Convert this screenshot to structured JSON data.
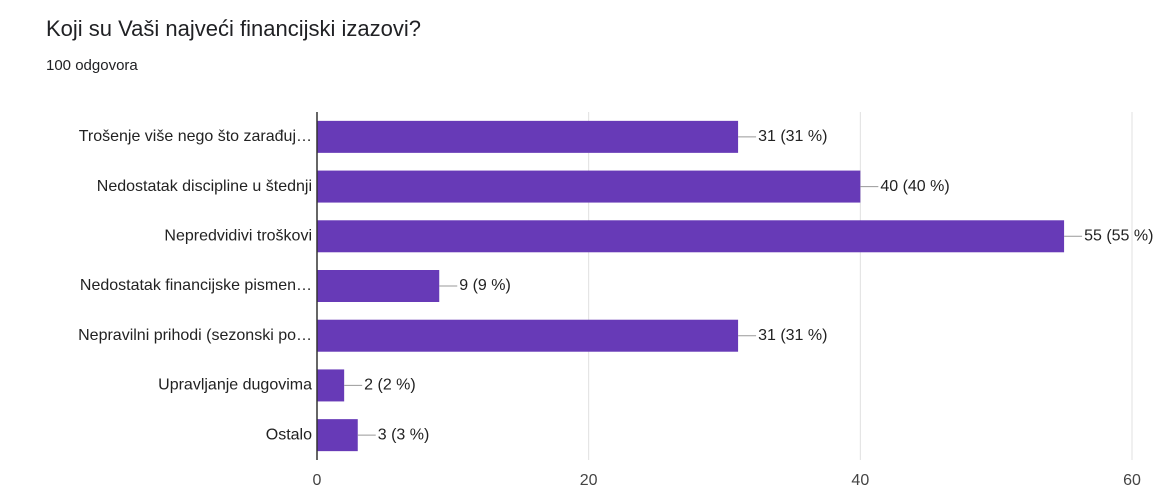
{
  "chart_data": {
    "type": "bar",
    "orientation": "horizontal",
    "title": "Koji su Vaši najveći financijski izazovi?",
    "subtitle": "100 odgovora",
    "categories": [
      "Trošenje više nego što zarađuj…",
      "Nedostatak discipline u štednji",
      "Nepredvidivi troškovi",
      "Nedostatak financijske pismen…",
      "Nepravilni prihodi (sezonski po…",
      "Upravljanje dugovima",
      "Ostalo"
    ],
    "values": [
      31,
      40,
      55,
      9,
      31,
      2,
      3
    ],
    "value_labels": [
      "31 (31 %)",
      "40 (40 %)",
      "55 (55 %)",
      "9 (9 %)",
      "31 (31 %)",
      "2 (2 %)",
      "3 (3 %)"
    ],
    "color": "#673ab7",
    "xlim": [
      0,
      60
    ],
    "xticks": [
      0,
      20,
      40,
      60
    ],
    "grid": true
  }
}
